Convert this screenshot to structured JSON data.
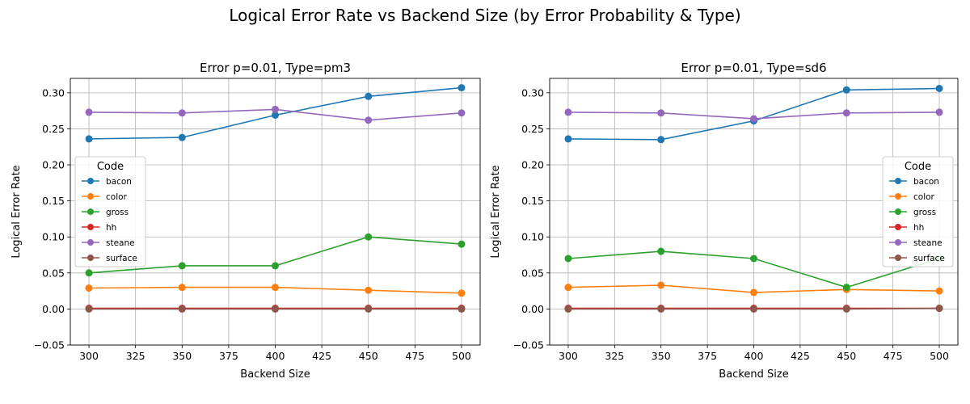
{
  "figure": {
    "suptitle": "Logical Error Rate vs Backend Size (by Error Probability & Type)"
  },
  "chart_data": [
    {
      "type": "line",
      "title": "Error p=0.01, Type=pm3",
      "xlabel": "Backend Size",
      "ylabel": "Logical Error Rate",
      "xlim": [
        290,
        510
      ],
      "ylim": [
        -0.05,
        0.32
      ],
      "xticks": [
        300,
        325,
        350,
        375,
        400,
        425,
        450,
        475,
        500
      ],
      "yticks": [
        -0.05,
        0.0,
        0.05,
        0.1,
        0.15,
        0.2,
        0.25,
        0.3
      ],
      "ytick_labels": [
        "−0.05",
        "0.00",
        "0.05",
        "0.10",
        "0.15",
        "0.20",
        "0.25",
        "0.30"
      ],
      "grid": true,
      "legend": {
        "title": "Code",
        "placement": "center-left"
      },
      "x": [
        300,
        350,
        400,
        450,
        500
      ],
      "series": [
        {
          "name": "bacon",
          "color": "#1f77b4",
          "values": [
            0.236,
            0.238,
            0.269,
            0.295,
            0.307
          ]
        },
        {
          "name": "color",
          "color": "#ff7f0e",
          "values": [
            0.029,
            0.03,
            0.03,
            0.026,
            0.022
          ]
        },
        {
          "name": "gross",
          "color": "#2ca02c",
          "values": [
            0.05,
            0.06,
            0.06,
            0.1,
            0.09
          ]
        },
        {
          "name": "hh",
          "color": "#d62728",
          "values": [
            0.001,
            0.001,
            0.001,
            0.001,
            0.001
          ]
        },
        {
          "name": "steane",
          "color": "#9467bd",
          "values": [
            0.273,
            0.272,
            0.277,
            0.262,
            0.272
          ]
        },
        {
          "name": "surface",
          "color": "#8c564b",
          "values": [
            0.0,
            0.0,
            0.0,
            0.0,
            0.0
          ]
        }
      ]
    },
    {
      "type": "line",
      "title": "Error p=0.01, Type=sd6",
      "xlabel": "Backend Size",
      "ylabel": "Logical Error Rate",
      "xlim": [
        290,
        510
      ],
      "ylim": [
        -0.05,
        0.32
      ],
      "xticks": [
        300,
        325,
        350,
        375,
        400,
        425,
        450,
        475,
        500
      ],
      "yticks": [
        -0.05,
        0.0,
        0.05,
        0.1,
        0.15,
        0.2,
        0.25,
        0.3
      ],
      "ytick_labels": [
        "−0.05",
        "0.00",
        "0.05",
        "0.10",
        "0.15",
        "0.20",
        "0.25",
        "0.30"
      ],
      "grid": true,
      "legend": {
        "title": "Code",
        "placement": "center-right"
      },
      "x": [
        300,
        350,
        400,
        450,
        500
      ],
      "series": [
        {
          "name": "bacon",
          "color": "#1f77b4",
          "values": [
            0.236,
            0.235,
            0.261,
            0.304,
            0.306
          ]
        },
        {
          "name": "color",
          "color": "#ff7f0e",
          "values": [
            0.03,
            0.033,
            0.023,
            0.027,
            0.025
          ]
        },
        {
          "name": "gross",
          "color": "#2ca02c",
          "values": [
            0.07,
            0.08,
            0.07,
            0.03,
            0.07
          ]
        },
        {
          "name": "hh",
          "color": "#d62728",
          "values": [
            0.001,
            0.001,
            0.001,
            0.001,
            0.001
          ]
        },
        {
          "name": "steane",
          "color": "#9467bd",
          "values": [
            0.273,
            0.272,
            0.264,
            0.272,
            0.273
          ]
        },
        {
          "name": "surface",
          "color": "#8c564b",
          "values": [
            0.0,
            0.0,
            0.0,
            0.0,
            0.001
          ]
        }
      ]
    }
  ]
}
